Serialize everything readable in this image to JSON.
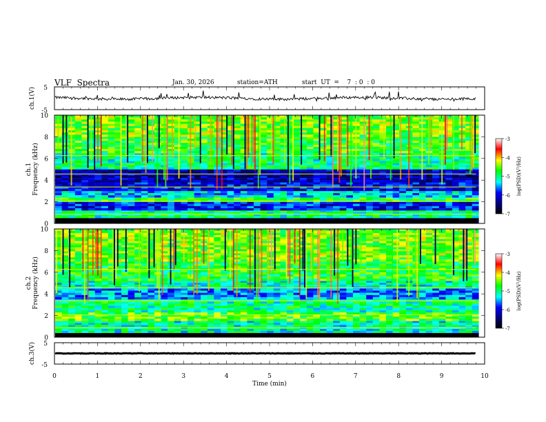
{
  "header": {
    "title": "VLF  Spectra",
    "date": "Jan. 30, 2026",
    "station": "station=ATH",
    "start_ut": "start  UT  =    7  : 0  : 0"
  },
  "colorbar": {
    "label": "log(PSD)(V²/Hz)",
    "ticks": [
      "-3",
      "-4",
      "-5",
      "-6",
      "-7"
    ],
    "colors": [
      "#ffffff",
      "#ff0000",
      "#ffff00",
      "#00ff00",
      "#00ffff",
      "#0000ff",
      "#00007f",
      "#000000"
    ]
  },
  "chart_data": [
    {
      "type": "line",
      "name": "ch1-waveform",
      "ylabel": "ch.1(V)",
      "ylim": [
        -5,
        5
      ],
      "ytick_labels": [
        "5",
        "-5"
      ],
      "xlim": [
        0,
        10
      ],
      "description_values": {
        "baseline": 0,
        "spike_max": 3,
        "spike_min": -1
      }
    },
    {
      "type": "heatmap",
      "name": "ch1-spectrogram",
      "ylabel": "ch.1\nFrequency  (kHz)",
      "ylim": [
        0,
        10
      ],
      "ytick_labels": [
        "0",
        "2",
        "4",
        "6",
        "8",
        "10"
      ],
      "xlim": [
        0,
        9.8
      ],
      "color_scale": [
        -7,
        -3
      ],
      "bands": [
        {
          "f_low": 0,
          "f_high": 0.5,
          "level": -6.9
        },
        {
          "f_low": 0.5,
          "f_high": 1.2,
          "level": -5.0
        },
        {
          "f_low": 1.2,
          "f_high": 2.0,
          "level": -5.9
        },
        {
          "f_low": 2.0,
          "f_high": 2.4,
          "level": -4.8
        },
        {
          "f_low": 2.4,
          "f_high": 3.0,
          "level": -5.4
        },
        {
          "f_low": 3.0,
          "f_high": 3.8,
          "level": -6.0
        },
        {
          "f_low": 3.8,
          "f_high": 5.0,
          "level": -6.2
        },
        {
          "f_low": 5.0,
          "f_high": 6.5,
          "level": -5.0
        },
        {
          "f_low": 6.5,
          "f_high": 8.0,
          "level": -4.7
        },
        {
          "f_low": 8.0,
          "f_high": 10.0,
          "level": -4.5
        }
      ]
    },
    {
      "type": "heatmap",
      "name": "ch2-spectrogram",
      "ylabel": "ch.2\nFrequency  (kHz)",
      "ylim": [
        0,
        10
      ],
      "ytick_labels": [
        "0",
        "2",
        "4",
        "6",
        "8",
        "10"
      ],
      "xlim": [
        0,
        9.8
      ],
      "color_scale": [
        -7,
        -3
      ],
      "bands": [
        {
          "f_low": 0,
          "f_high": 0.4,
          "level": -6.9
        },
        {
          "f_low": 0.4,
          "f_high": 1.5,
          "level": -5.1
        },
        {
          "f_low": 1.5,
          "f_high": 2.3,
          "level": -4.6
        },
        {
          "f_low": 2.3,
          "f_high": 3.5,
          "level": -5.0
        },
        {
          "f_low": 3.5,
          "f_high": 4.5,
          "level": -5.5
        },
        {
          "f_low": 4.5,
          "f_high": 5.2,
          "level": -5.1
        },
        {
          "f_low": 5.2,
          "f_high": 7.0,
          "level": -4.8
        },
        {
          "f_low": 7.0,
          "f_high": 10.0,
          "level": -4.5
        }
      ]
    },
    {
      "type": "line",
      "name": "ch3-waveform",
      "ylabel": "ch.3(V)",
      "ylim": [
        -5,
        5
      ],
      "ytick_labels": [
        "5",
        "-5"
      ],
      "xlim": [
        0,
        10
      ],
      "description_values": {
        "baseline": 0
      }
    }
  ],
  "xaxis": {
    "label": "Time  (min)",
    "tick_labels": [
      "0",
      "1",
      "2",
      "3",
      "4",
      "5",
      "6",
      "7",
      "8",
      "9",
      "10"
    ],
    "range": [
      0,
      10
    ]
  }
}
